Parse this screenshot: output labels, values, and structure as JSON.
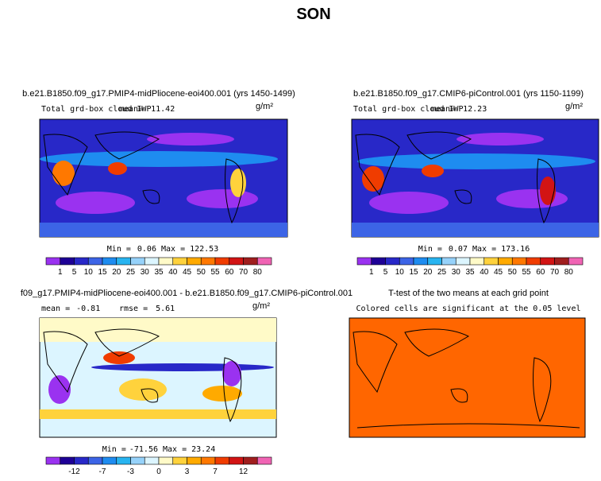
{
  "title": "SON",
  "panels": [
    {
      "title": "b.e21.B1850.f09_g17.PMIP4-midPliocene-eoi400.001 (yrs 1450-1499)",
      "left": "Total grd-box cloud IWP",
      "stat1_label": "mean=",
      "stat1": 11.42,
      "units": "g/m²",
      "min_label": "Min =",
      "min": 0.06,
      "max_label": "Max =",
      "max": 122.53
    },
    {
      "title": "b.e21.B1850.f09_g17.CMIP6-piControl.001 (yrs 1150-1199)",
      "left": "Total grd-box cloud IWP",
      "stat1_label": "mean=",
      "stat1": 12.23,
      "units": "g/m²",
      "min_label": "Min =",
      "min": 0.07,
      "max_label": "Max =",
      "max": 173.16
    },
    {
      "title": "f09_g17.PMIP4-midPliocene-eoi400.001 - b.e21.B1850.f09_g17.CMIP6-piControl.001",
      "stat1_label": "mean =",
      "stat1": -0.81,
      "stat2_label": "rmse =",
      "stat2": 5.61,
      "units": "g/m²",
      "min_label": "Min =",
      "min": -71.56,
      "max_label": "Max =",
      "max": 23.24
    },
    {
      "title": "T-test of the two means at each grid point",
      "subtitle": "Colored cells are significant at the 0.05 level"
    }
  ],
  "colorbars": [
    {
      "labels": [
        "1",
        "5",
        "10",
        "15",
        "20",
        "25",
        "30",
        "35",
        "40",
        "45",
        "50",
        "55",
        "60",
        "70",
        "80"
      ],
      "colors": [
        "#9a32f0",
        "#1e0096",
        "#2828c8",
        "#3c64e6",
        "#1e8cf0",
        "#28b4f0",
        "#96d2fa",
        "#dcf5ff",
        "#fffac8",
        "#ffd23c",
        "#ffaa00",
        "#ff7800",
        "#f03c00",
        "#d21414",
        "#a01e1e",
        "#f064b4"
      ]
    },
    {
      "labels": [
        "-12",
        "-7",
        "-3",
        "0",
        "3",
        "7",
        "12"
      ],
      "colors": [
        "#9a32f0",
        "#1e0096",
        "#2828c8",
        "#3c64e6",
        "#1e8cf0",
        "#28b4f0",
        "#96d2fa",
        "#dcf5ff",
        "#fffac8",
        "#ffd23c",
        "#ffaa00",
        "#ff7800",
        "#f03c00",
        "#d21414",
        "#a01e1e",
        "#f064b4"
      ]
    }
  ]
}
